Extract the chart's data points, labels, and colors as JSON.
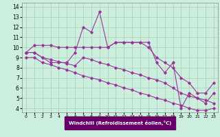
{
  "xlabel": "Windchill (Refroidissement éolien,°C)",
  "bg_color": "#cceedd",
  "grid_color": "#aaccbb",
  "line_color": "#993399",
  "x_ticks": [
    0,
    1,
    2,
    3,
    4,
    5,
    6,
    7,
    8,
    9,
    10,
    11,
    12,
    13,
    14,
    15,
    16,
    17,
    18,
    19,
    20,
    21,
    22,
    23
  ],
  "y_ticks": [
    4,
    5,
    6,
    7,
    8,
    9,
    10,
    11,
    12,
    13,
    14
  ],
  "ylim": [
    3.6,
    14.4
  ],
  "xlim": [
    -0.5,
    23.5
  ],
  "series": [
    {
      "x": [
        0,
        1,
        2,
        3,
        4,
        5,
        6,
        7,
        8,
        9,
        10,
        11,
        12,
        13,
        14,
        15,
        16,
        17,
        18,
        19,
        20,
        21,
        22,
        23
      ],
      "y": [
        9.5,
        10.2,
        10.2,
        10.2,
        10.0,
        10.0,
        10.0,
        10.0,
        10.0,
        10.0,
        10.0,
        10.5,
        10.5,
        10.5,
        10.5,
        10.0,
        9.0,
        8.5,
        8.0,
        7.0,
        6.5,
        5.5,
        5.5,
        6.5
      ]
    },
    {
      "x": [
        0,
        1,
        2,
        3,
        4,
        5,
        6,
        7,
        8,
        9,
        10,
        11,
        12,
        13,
        14,
        15,
        16,
        17,
        18,
        19,
        20,
        21,
        22,
        23
      ],
      "y": [
        9.5,
        9.5,
        9.0,
        8.5,
        8.5,
        8.5,
        9.5,
        12.0,
        11.5,
        13.5,
        10.0,
        10.5,
        10.5,
        10.5,
        10.5,
        10.5,
        8.5,
        7.5,
        8.5,
        4.0,
        5.5,
        5.0,
        4.5,
        5.5
      ]
    },
    {
      "x": [
        0,
        1,
        2,
        3,
        4,
        5,
        6,
        7,
        8,
        9,
        10,
        11,
        12,
        13,
        14,
        15,
        16,
        17,
        18,
        19,
        20,
        21,
        22,
        23
      ],
      "y": [
        9.5,
        9.5,
        9.0,
        8.8,
        8.6,
        8.4,
        8.2,
        9.0,
        8.8,
        8.5,
        8.3,
        8.0,
        7.8,
        7.5,
        7.3,
        7.0,
        6.8,
        6.5,
        6.0,
        5.5,
        5.2,
        5.0,
        4.8,
        4.5
      ]
    },
    {
      "x": [
        0,
        1,
        2,
        3,
        4,
        5,
        6,
        7,
        8,
        9,
        10,
        11,
        12,
        13,
        14,
        15,
        16,
        17,
        18,
        19,
        20,
        21,
        22,
        23
      ],
      "y": [
        9.0,
        9.0,
        8.5,
        8.3,
        8.0,
        7.8,
        7.5,
        7.2,
        7.0,
        6.8,
        6.5,
        6.3,
        6.0,
        5.8,
        5.5,
        5.3,
        5.0,
        4.8,
        4.5,
        4.3,
        4.0,
        3.8,
        3.8,
        4.0
      ]
    }
  ]
}
